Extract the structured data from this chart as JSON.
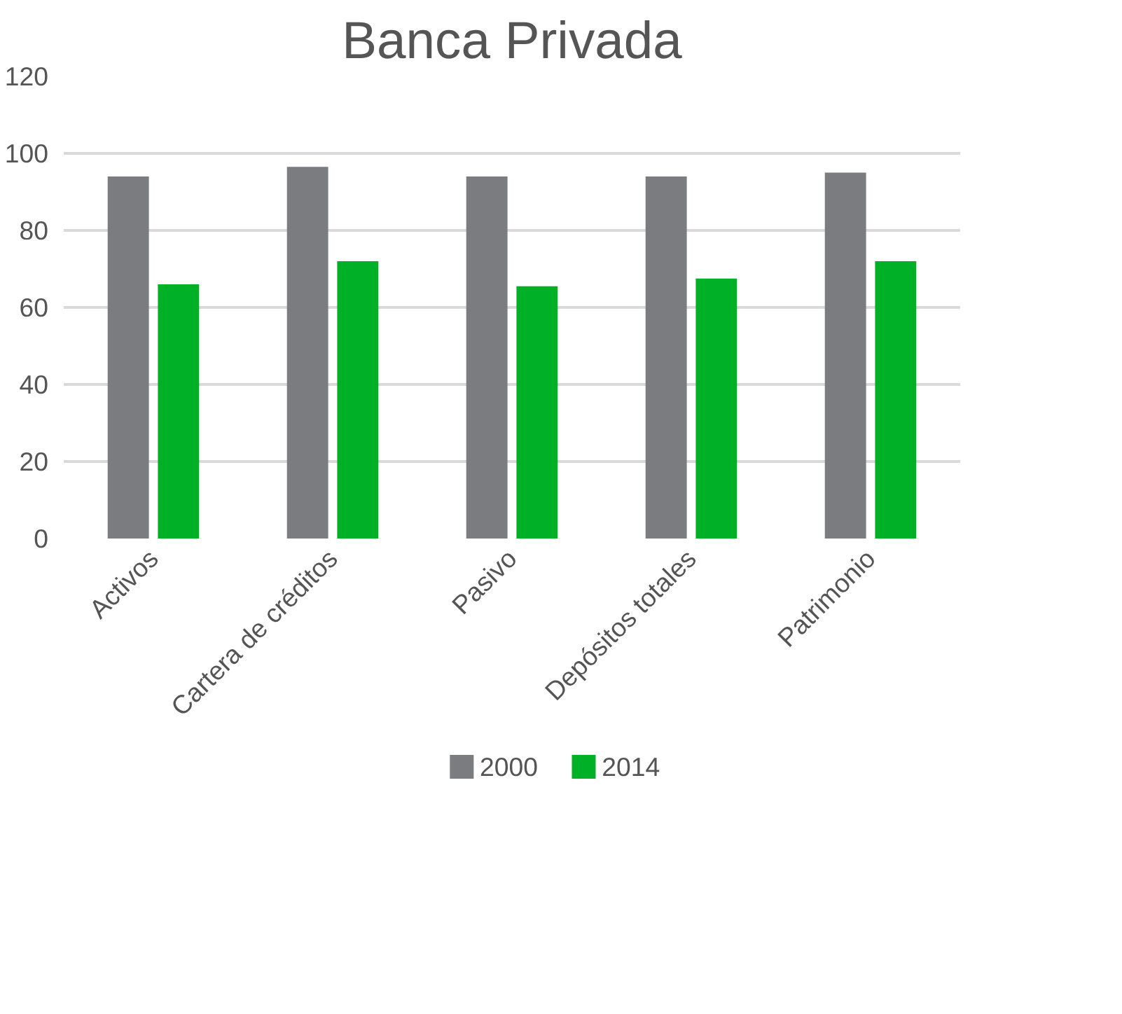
{
  "chart_data": {
    "type": "bar",
    "title": "Banca Privada",
    "categories": [
      "Activos",
      "Cartera de créditos",
      "Pasivo",
      "Depósitos totales",
      "Patrimonio"
    ],
    "series": [
      {
        "name": "2000",
        "color": "#7b7c80",
        "values": [
          94,
          96.5,
          94,
          94,
          95
        ]
      },
      {
        "name": "2014",
        "color": "#00b026",
        "values": [
          66,
          72,
          65.5,
          67.5,
          72
        ]
      }
    ],
    "ylim": [
      0,
      120
    ],
    "yticks": [
      0,
      20,
      40,
      60,
      80,
      100,
      120
    ],
    "grid": "y",
    "legend": "bottom"
  }
}
